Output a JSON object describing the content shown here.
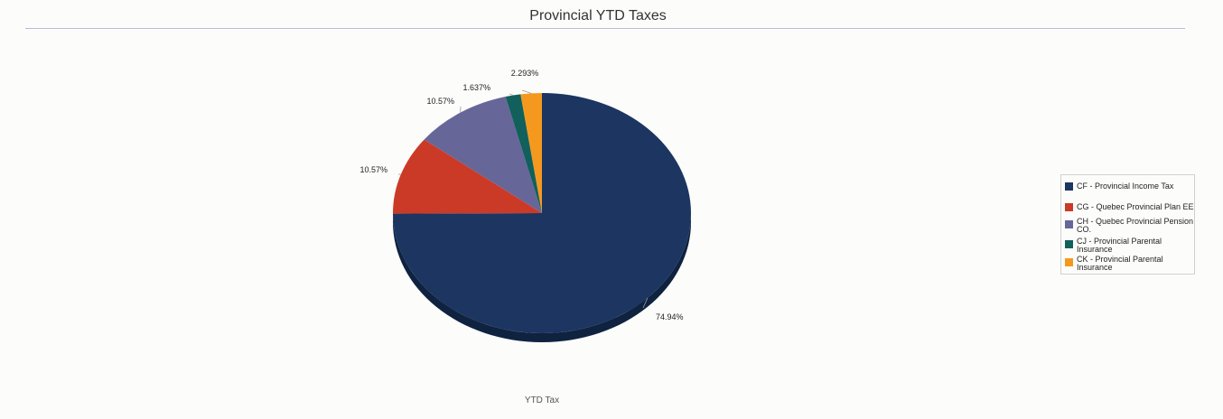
{
  "chart_data": {
    "type": "pie",
    "title": "Provincial YTD Taxes",
    "xlabel": "YTD Tax",
    "legend_position": "right",
    "slices": [
      {
        "name": "CF - Provincial Income Tax",
        "value": 74.94,
        "label": "74.94%",
        "color": "#1c3561"
      },
      {
        "name": "CG - Quebec Provincial Plan EE",
        "value": 10.57,
        "label": "10.57%",
        "color": "#cb3a27"
      },
      {
        "name": "CH - Quebec Provincial Pension CO.",
        "value": 10.57,
        "label": "10.57%",
        "color": "#676698"
      },
      {
        "name": "CJ - Provincial Parental Insurance",
        "value": 1.637,
        "label": "1.637%",
        "color": "#11605c"
      },
      {
        "name": "CK - Provincial Parental Insurance",
        "value": 2.293,
        "label": "2.293%",
        "color": "#f4991e"
      }
    ]
  }
}
